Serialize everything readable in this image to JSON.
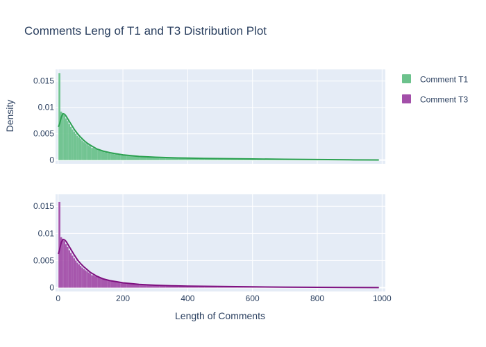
{
  "chart_data": {
    "type": "histogram+line",
    "title": "Comments Leng of T1 and T3 Distribution Plot",
    "xlabel": "Length of Comments",
    "ylabel": "Density",
    "xlim": [
      -8,
      1010
    ],
    "x_ticks": [
      0,
      200,
      400,
      600,
      800,
      1000
    ],
    "x_tick_labels": [
      "0",
      "200",
      "400",
      "600",
      "800",
      "1000"
    ],
    "ylim": [
      -0.0007,
      0.0172
    ],
    "y_ticks": [
      0,
      0.005,
      0.01,
      0.015
    ],
    "y_tick_labels": [
      "0",
      "0.005",
      "0.01",
      "0.015"
    ],
    "grid": true,
    "legend_position": "top-right",
    "series": [
      {
        "name": "Comment T1",
        "fill": "#6cc28c",
        "line": "#2ca151",
        "histogram": {
          "bin_edges": [
            1,
            7,
            12,
            17,
            22,
            27,
            32,
            37,
            42,
            47,
            52,
            57,
            62,
            67,
            72,
            77,
            82,
            87,
            92,
            97,
            102,
            112,
            122,
            132,
            142,
            152,
            162,
            172,
            182,
            192,
            212,
            232,
            252,
            272,
            292,
            312,
            332,
            352,
            372,
            392,
            412,
            432,
            452,
            472,
            492,
            512,
            532,
            552,
            572,
            592,
            612,
            632,
            652,
            672,
            692,
            712,
            732,
            752,
            772,
            792,
            812,
            832,
            852,
            872,
            892,
            912,
            932,
            952,
            972,
            992
          ],
          "density": [
            0.0165,
            0.0092,
            0.0089,
            0.0085,
            0.0079,
            0.0074,
            0.0068,
            0.0063,
            0.0058,
            0.0054,
            0.005,
            0.0046,
            0.0043,
            0.004,
            0.0037,
            0.0034,
            0.0032,
            0.003,
            0.0028,
            0.0026,
            0.0023,
            0.0021,
            0.0019,
            0.0017,
            0.0015,
            0.0013,
            0.0012,
            0.0011,
            0.001,
            0.0009,
            0.0008,
            0.0007,
            0.0006,
            0.00055,
            0.0005,
            0.00045,
            0.00042,
            0.0004,
            0.00037,
            0.00035,
            0.00033,
            0.0003,
            0.00029,
            0.00027,
            0.00026,
            0.00025,
            0.00024,
            0.00023,
            0.00022,
            0.00021,
            0.0002,
            0.00019,
            0.00018,
            0.00017,
            0.00016,
            0.00015,
            0.00014,
            0.00013,
            0.00012,
            0.00011,
            0.0001,
            0.0001,
            9e-05,
            8e-05,
            7e-05,
            6e-05,
            5e-05,
            4e-05,
            3e-05
          ]
        },
        "kde": {
          "x": [
            1,
            5,
            10,
            15,
            20,
            25,
            30,
            40,
            50,
            60,
            70,
            80,
            90,
            100,
            120,
            140,
            160,
            180,
            200,
            250,
            300,
            350,
            400,
            450,
            500,
            600,
            700,
            800,
            900,
            990
          ],
          "y": [
            0.0063,
            0.007,
            0.0082,
            0.0088,
            0.0087,
            0.0083,
            0.0078,
            0.0068,
            0.0058,
            0.005,
            0.0043,
            0.0037,
            0.0032,
            0.0028,
            0.0021,
            0.0017,
            0.0014,
            0.0012,
            0.001,
            0.0007,
            0.00055,
            0.00045,
            0.00038,
            0.00033,
            0.00029,
            0.00022,
            0.00015,
            0.0001,
            5e-05,
            2e-05
          ]
        }
      },
      {
        "name": "Comment T3",
        "fill": "#a34fa9",
        "line": "#7e1180",
        "histogram": {
          "bin_edges": [
            1,
            7,
            12,
            17,
            22,
            27,
            32,
            37,
            42,
            47,
            52,
            57,
            62,
            67,
            72,
            77,
            82,
            87,
            92,
            97,
            102,
            112,
            122,
            132,
            142,
            152,
            162,
            172,
            182,
            192,
            212,
            232,
            252,
            272,
            292,
            312,
            332,
            352,
            372,
            392,
            412,
            432,
            452,
            472,
            492,
            512,
            532,
            552,
            572,
            592,
            612,
            632,
            652,
            672,
            692,
            712,
            732,
            752,
            772,
            792,
            812,
            832,
            852,
            872,
            892,
            912,
            932,
            952,
            972,
            992
          ],
          "density": [
            0.0158,
            0.0093,
            0.009,
            0.0086,
            0.008,
            0.0075,
            0.0069,
            0.0064,
            0.0059,
            0.0054,
            0.005,
            0.0046,
            0.0043,
            0.004,
            0.0037,
            0.0034,
            0.0032,
            0.003,
            0.0028,
            0.0026,
            0.0023,
            0.0021,
            0.0019,
            0.0017,
            0.0015,
            0.0013,
            0.0012,
            0.0011,
            0.001,
            0.0009,
            0.0008,
            0.0007,
            0.0006,
            0.00055,
            0.0005,
            0.00045,
            0.0004,
            0.00037,
            0.00034,
            0.00031,
            0.00029,
            0.00027,
            0.00025,
            0.00023,
            0.00022,
            0.00021,
            0.0002,
            0.00019,
            0.00018,
            0.00017,
            0.00016,
            0.00015,
            0.00014,
            0.00013,
            0.00012,
            0.00011,
            0.0001,
            9e-05,
            9e-05,
            8e-05,
            7e-05,
            6e-05,
            6e-05,
            5e-05,
            4e-05,
            4e-05,
            3e-05,
            3e-05,
            2e-05
          ]
        },
        "kde": {
          "x": [
            1,
            5,
            10,
            15,
            20,
            25,
            30,
            40,
            50,
            60,
            70,
            80,
            90,
            100,
            120,
            140,
            160,
            180,
            200,
            250,
            300,
            350,
            400,
            450,
            500,
            600,
            700,
            800,
            900,
            990
          ],
          "y": [
            0.0062,
            0.0072,
            0.0084,
            0.0089,
            0.0088,
            0.0085,
            0.008,
            0.007,
            0.006,
            0.0051,
            0.0044,
            0.0038,
            0.0033,
            0.0028,
            0.0021,
            0.0016,
            0.0013,
            0.0011,
            0.0009,
            0.0006,
            0.00045,
            0.00035,
            0.0003,
            0.00026,
            0.00022,
            0.00016,
            0.00011,
            7e-05,
            4e-05,
            2e-05
          ]
        }
      }
    ]
  }
}
